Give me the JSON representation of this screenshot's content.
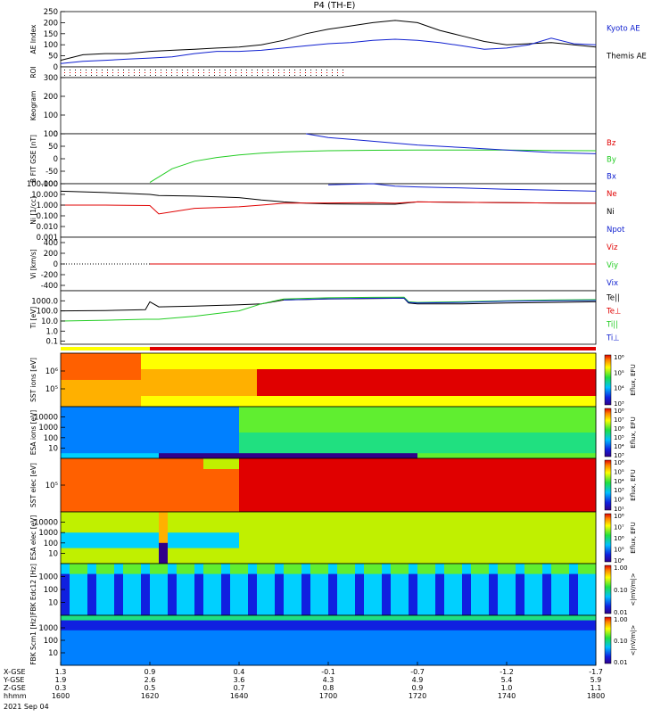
{
  "title": "P4 (TH-E)",
  "colors": {
    "black": "#000000",
    "red": "#e00000",
    "green": "#22cc22",
    "blue": "#1020d0",
    "yellow": "#ffff00",
    "bg": "#ffffff"
  },
  "time_axis": {
    "ticks": [
      "1600",
      "1620",
      "1640",
      "1700",
      "1720",
      "1740",
      "1800"
    ],
    "rows": [
      {
        "label": "X-GSE",
        "values": [
          "1.3",
          "0.9",
          "0.4",
          "-0.1",
          "-0.7",
          "-1.2",
          "-1.7"
        ]
      },
      {
        "label": "Y-GSE",
        "values": [
          "1.9",
          "2.6",
          "3.6",
          "4.3",
          "4.9",
          "5.4",
          "5.9"
        ]
      },
      {
        "label": "Z-GSE",
        "values": [
          "0.3",
          "0.5",
          "0.7",
          "0.8",
          "0.9",
          "1.0",
          "1.1"
        ]
      },
      {
        "label": "hhmm",
        "values": [
          "1600",
          "1620",
          "1640",
          "1700",
          "1720",
          "1740",
          "1800"
        ]
      }
    ],
    "date": "2021 Sep 04"
  },
  "chart_data": [
    {
      "type": "line",
      "id": "ae",
      "ylabel": "AE Index",
      "ylim": [
        0,
        250
      ],
      "yticks": [
        "0",
        "50",
        "100",
        "150",
        "200",
        "250"
      ],
      "legend": [
        {
          "name": "Kyoto AE",
          "color": "#1020d0"
        },
        {
          "name": "Themis AE",
          "color": "#000000"
        }
      ],
      "x": [
        1600,
        1605,
        1610,
        1615,
        1620,
        1625,
        1630,
        1635,
        1640,
        1645,
        1650,
        1655,
        1700,
        1705,
        1710,
        1715,
        1720,
        1725,
        1730,
        1735,
        1740,
        1745,
        1750,
        1755,
        1800
      ],
      "series": [
        {
          "name": "Themis AE",
          "color": "#000000",
          "values": [
            30,
            55,
            60,
            60,
            70,
            75,
            80,
            85,
            90,
            100,
            120,
            150,
            170,
            185,
            200,
            210,
            200,
            165,
            140,
            115,
            100,
            105,
            110,
            100,
            90
          ]
        },
        {
          "name": "Kyoto AE",
          "color": "#1020d0",
          "values": [
            15,
            25,
            30,
            35,
            40,
            45,
            60,
            70,
            70,
            75,
            85,
            95,
            105,
            110,
            120,
            125,
            120,
            110,
            95,
            80,
            85,
            100,
            130,
            105,
            100
          ]
        }
      ]
    },
    {
      "type": "heatmap",
      "id": "roi",
      "ylabel": "ROI"
    },
    {
      "type": "heatmap",
      "id": "keogram",
      "ylabel": "Keogram",
      "ylim": [
        0,
        300
      ],
      "yticks": [
        "0",
        "100",
        "200",
        "300"
      ]
    },
    {
      "type": "line",
      "id": "bfgm",
      "ylabel": "B FIT GSE [nT]",
      "ylim": [
        -100,
        100
      ],
      "yticks": [
        "-100",
        "-50",
        "0",
        "50",
        "100"
      ],
      "legend": [
        {
          "name": "Bz",
          "color": "#e00000"
        },
        {
          "name": "By",
          "color": "#22cc22"
        },
        {
          "name": "Bx",
          "color": "#1020d0"
        }
      ],
      "x": [
        1620,
        1625,
        1630,
        1635,
        1640,
        1645,
        1650,
        1655,
        1700,
        1710,
        1720,
        1730,
        1740,
        1750,
        1800
      ],
      "series": [
        {
          "name": "By",
          "color": "#22cc22",
          "values": [
            -95,
            -40,
            -10,
            5,
            15,
            22,
            27,
            30,
            32,
            34,
            35,
            35,
            35,
            33,
            32
          ]
        },
        {
          "name": "Bx",
          "color": "#1020d0",
          "values": [
            null,
            null,
            null,
            null,
            null,
            null,
            null,
            100,
            85,
            70,
            55,
            45,
            35,
            25,
            20
          ]
        }
      ]
    },
    {
      "type": "line",
      "id": "ni",
      "ylabel": "Ni [1/cc]",
      "log": true,
      "ylim": [
        0.001,
        100
      ],
      "yticks": [
        "0.001",
        "0.010",
        "0.100",
        "1.000",
        "10.000",
        "100.000"
      ],
      "legend": [
        {
          "name": "Ne",
          "color": "#e00000"
        },
        {
          "name": "Ni",
          "color": "#000000"
        },
        {
          "name": "Npot",
          "color": "#1020d0"
        }
      ],
      "x": [
        1600,
        1610,
        1620,
        1622,
        1630,
        1640,
        1645,
        1650,
        1655,
        1700,
        1710,
        1715,
        1720,
        1730,
        1740,
        1750,
        1800
      ],
      "series": [
        {
          "name": "Ni",
          "color": "#000000",
          "values": [
            20,
            15,
            10,
            8,
            7,
            5,
            3,
            2,
            1.5,
            1.3,
            1.2,
            1.2,
            2,
            1.8,
            1.7,
            1.6,
            1.5
          ]
        },
        {
          "name": "Ne",
          "color": "#e00000",
          "values": [
            1,
            1,
            0.9,
            0.15,
            0.5,
            0.7,
            1.0,
            1.5,
            1.6,
            1.6,
            1.7,
            1.5,
            2,
            1.8,
            1.7,
            1.6,
            1.5
          ]
        },
        {
          "name": "Npot",
          "color": "#1020d0",
          "values": [
            null,
            null,
            null,
            null,
            null,
            null,
            null,
            null,
            null,
            80,
            100,
            60,
            50,
            40,
            30,
            25,
            20
          ]
        }
      ]
    },
    {
      "type": "line",
      "id": "vi",
      "ylabel": "Vi [km/s]",
      "ylim": [
        -500,
        500
      ],
      "yticks": [
        "-400",
        "-200",
        "0",
        "200",
        "400"
      ],
      "legend": [
        {
          "name": "Viz",
          "color": "#e00000"
        },
        {
          "name": "Viy",
          "color": "#22cc22"
        },
        {
          "name": "Vix",
          "color": "#1020d0"
        }
      ],
      "x": [
        1620,
        1640,
        1700,
        1720,
        1740,
        1800
      ],
      "series": [
        {
          "name": "Viz",
          "color": "#e00000",
          "values": [
            0,
            0,
            0,
            0,
            0,
            0
          ]
        }
      ]
    },
    {
      "type": "line",
      "id": "ti",
      "ylabel": "Ti [eV]",
      "log": true,
      "ylim": [
        0.05,
        10000
      ],
      "yticks": [
        "0.1",
        "1.0",
        "10.0",
        "100.0",
        "1000.0"
      ],
      "legend": [
        {
          "name": "Te||",
          "color": "#000000"
        },
        {
          "name": "Te⊥",
          "color": "#e00000"
        },
        {
          "name": "Ti||",
          "color": "#22cc22"
        },
        {
          "name": "Ti⊥",
          "color": "#1020d0"
        }
      ],
      "x": [
        1600,
        1610,
        1619,
        1620,
        1622,
        1630,
        1640,
        1645,
        1650,
        1700,
        1710,
        1717,
        1718,
        1720,
        1730,
        1740,
        1750,
        1800
      ],
      "series": [
        {
          "name": "Te||",
          "color": "#000000",
          "values": [
            100,
            110,
            130,
            800,
            250,
            300,
            400,
            500,
            1200,
            1500,
            1700,
            1800,
            600,
            500,
            500,
            600,
            700,
            800
          ]
        },
        {
          "name": "Ti||",
          "color": "#22cc22",
          "values": [
            10,
            12,
            15,
            15,
            15,
            30,
            100,
            500,
            1500,
            2000,
            2200,
            2300,
            800,
            700,
            800,
            1000,
            1200,
            1300
          ]
        },
        {
          "name": "Ti⊥",
          "color": "#1020d0",
          "values": [
            null,
            null,
            null,
            null,
            null,
            null,
            null,
            null,
            1200,
            1600,
            1800,
            1900,
            700,
            600,
            700,
            900,
            1000,
            1100
          ]
        }
      ]
    },
    {
      "type": "heatmap",
      "id": "sst_ion",
      "ylabel": "SST ions [eV]",
      "yticks": [
        "10⁵",
        "10⁶"
      ],
      "colorbar": {
        "label": "Eflux, EFU",
        "ticks": [
          "10³",
          "10⁴",
          "10⁵",
          "10⁶"
        ]
      }
    },
    {
      "type": "heatmap",
      "id": "esa_ion",
      "ylabel": "ESA ions [eV]",
      "yticks": [
        "10",
        "100",
        "1000",
        "10000"
      ],
      "colorbar": {
        "label": "Eflux, EFU",
        "ticks": [
          "10³",
          "10⁴",
          "10⁵",
          "10⁶",
          "10⁷",
          "10⁸"
        ]
      }
    },
    {
      "type": "heatmap",
      "id": "sst_elec",
      "ylabel": "SST elec [eV]",
      "yticks": [
        "10⁵"
      ],
      "colorbar": {
        "label": "Eflux, EFU",
        "ticks": [
          "10¹",
          "10²",
          "10³",
          "10⁴",
          "10⁵",
          "10⁶"
        ]
      }
    },
    {
      "type": "heatmap",
      "id": "esa_elec",
      "ylabel": "ESA elec [eV]",
      "yticks": [
        "10",
        "100",
        "1000",
        "10000"
      ],
      "colorbar": {
        "label": "Eflux, EFU",
        "ticks": [
          "10⁴",
          "10⁵",
          "10⁶",
          "10⁷",
          "10⁸"
        ]
      }
    },
    {
      "type": "heatmap",
      "id": "fbk_e",
      "ylabel": "FBK Edc12 [Hz]",
      "yticks": [
        "10",
        "100",
        "1000"
      ],
      "colorbar": {
        "label": "<|mV/m|>",
        "ticks": [
          "0.01",
          "0.10",
          "1.00"
        ]
      }
    },
    {
      "type": "heatmap",
      "id": "fbk_b",
      "ylabel": "FBK Scm1 [Hz]",
      "yticks": [
        "10",
        "100",
        "1000"
      ],
      "colorbar": {
        "label": "<|nV/m|>",
        "ticks": [
          "0.01",
          "0.10",
          "1.00"
        ]
      }
    }
  ]
}
